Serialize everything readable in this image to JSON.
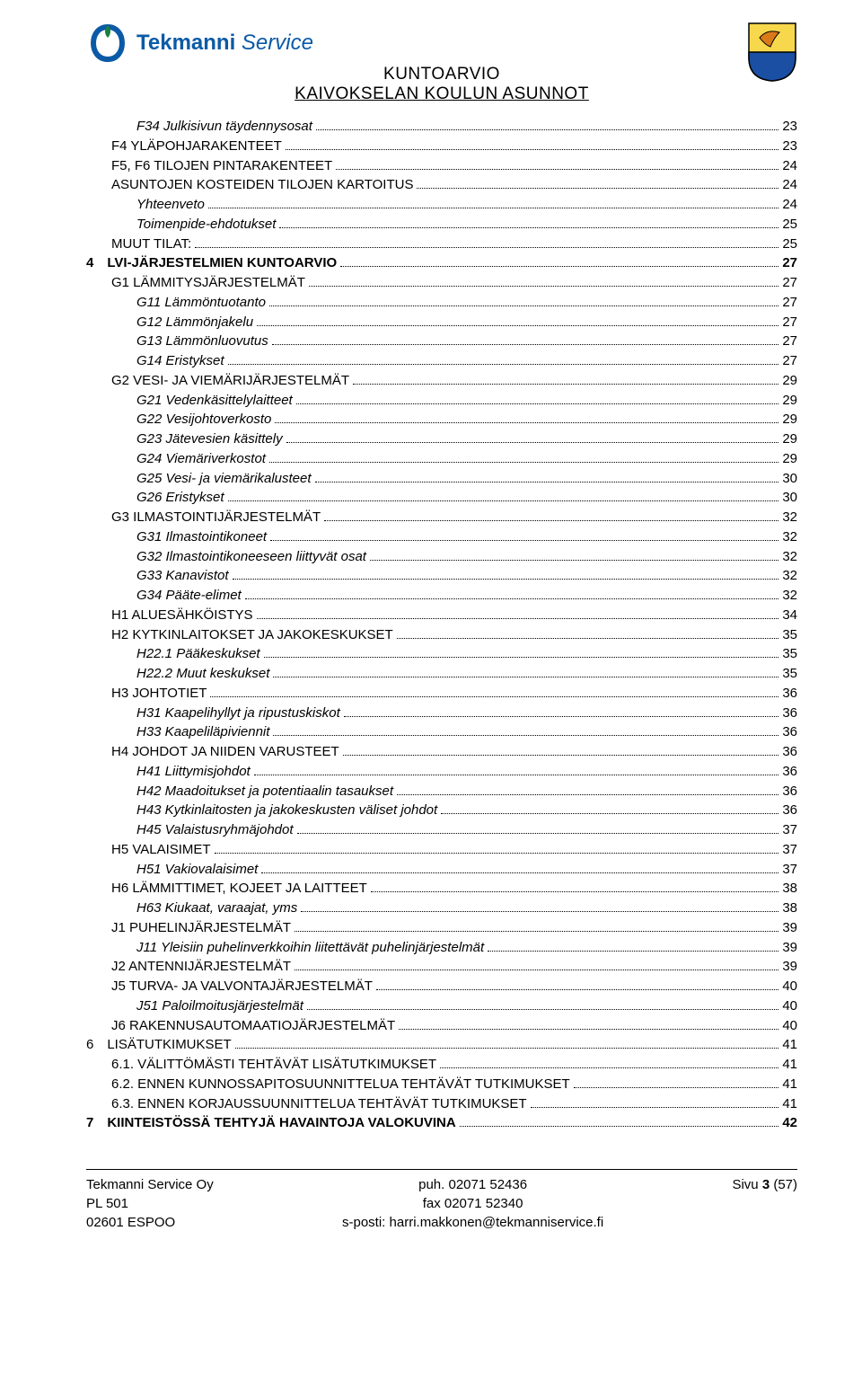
{
  "brand": {
    "name": "Tekmanni",
    "suffix": "Service",
    "color": "#0b5aa6",
    "icon_colors": {
      "leaf": "#1a7f3c",
      "arc": "#0b5aa6"
    }
  },
  "crest_colors": {
    "top": "#f7d84c",
    "bottom": "#1a4fa3",
    "wing": "#d97a1a",
    "outline": "#000000"
  },
  "doc_title_line1": "KUNTOARVIO",
  "doc_title_line2": "KAIVOKSELAN KOULUN ASUNNOT",
  "toc": [
    {
      "label": "F34 Julkisivun täydennysosat",
      "page": "23",
      "indent": 3,
      "style": "italic"
    },
    {
      "label": "F4 YLÄPOHJARAKENTEET",
      "page": "23",
      "indent": 2,
      "style": "smallcaps"
    },
    {
      "label": "F5, F6 TILOJEN PINTARAKENTEET",
      "page": "24",
      "indent": 2,
      "style": "smallcaps"
    },
    {
      "label": "ASUNTOJEN KOSTEIDEN TILOJEN KARTOITUS",
      "page": "24",
      "indent": 2,
      "style": "smallcaps"
    },
    {
      "label": "Yhteenveto",
      "page": "24",
      "indent": 3,
      "style": "italic"
    },
    {
      "label": "Toimenpide-ehdotukset",
      "page": "25",
      "indent": 3,
      "style": "italic"
    },
    {
      "label": "MUUT TILAT:",
      "page": "25",
      "indent": 2,
      "style": "smallcaps"
    },
    {
      "label": "4 LVI-JÄRJESTELMIEN KUNTOARVIO",
      "page": "27",
      "indent": 1,
      "style": "bold"
    },
    {
      "label": "G1 LÄMMITYSJÄRJESTELMÄT",
      "page": "27",
      "indent": 2,
      "style": "smallcaps"
    },
    {
      "label": "G11 Lämmöntuotanto",
      "page": "27",
      "indent": 3,
      "style": "italic"
    },
    {
      "label": "G12 Lämmönjakelu",
      "page": "27",
      "indent": 3,
      "style": "italic"
    },
    {
      "label": "G13 Lämmönluovutus",
      "page": "27",
      "indent": 3,
      "style": "italic"
    },
    {
      "label": "G14 Eristykset",
      "page": "27",
      "indent": 3,
      "style": "italic"
    },
    {
      "label": "G2 VESI- JA VIEMÄRIJÄRJESTELMÄT",
      "page": "29",
      "indent": 2,
      "style": "smallcaps"
    },
    {
      "label": "G21 Vedenkäsittelylaitteet",
      "page": "29",
      "indent": 3,
      "style": "italic"
    },
    {
      "label": "G22 Vesijohtoverkosto",
      "page": "29",
      "indent": 3,
      "style": "italic"
    },
    {
      "label": "G23 Jätevesien käsittely",
      "page": "29",
      "indent": 3,
      "style": "italic"
    },
    {
      "label": "G24 Viemäriverkostot",
      "page": "29",
      "indent": 3,
      "style": "italic"
    },
    {
      "label": "G25 Vesi- ja viemärikalusteet",
      "page": "30",
      "indent": 3,
      "style": "italic"
    },
    {
      "label": "G26 Eristykset",
      "page": "30",
      "indent": 3,
      "style": "italic"
    },
    {
      "label": "G3 ILMASTOINTIJÄRJESTELMÄT",
      "page": "32",
      "indent": 2,
      "style": "smallcaps"
    },
    {
      "label": "G31 Ilmastointikoneet",
      "page": "32",
      "indent": 3,
      "style": "italic"
    },
    {
      "label": "G32 Ilmastointikoneeseen liittyvät osat",
      "page": "32",
      "indent": 3,
      "style": "italic"
    },
    {
      "label": "G33 Kanavistot",
      "page": "32",
      "indent": 3,
      "style": "italic"
    },
    {
      "label": "G34 Pääte-elimet",
      "page": "32",
      "indent": 3,
      "style": "italic"
    },
    {
      "label": "H1 ALUESÄHKÖISTYS",
      "page": "34",
      "indent": 2,
      "style": "smallcaps"
    },
    {
      "label": "H2 KYTKINLAITOKSET JA JAKOKESKUKSET",
      "page": "35",
      "indent": 2,
      "style": "smallcaps"
    },
    {
      "label": "H22.1 Pääkeskukset",
      "page": "35",
      "indent": 3,
      "style": "italic"
    },
    {
      "label": "H22.2 Muut keskukset",
      "page": "35",
      "indent": 3,
      "style": "italic"
    },
    {
      "label": "H3 JOHTOTIET",
      "page": "36",
      "indent": 2,
      "style": "smallcaps"
    },
    {
      "label": "H31 Kaapelihyllyt ja ripustuskiskot",
      "page": "36",
      "indent": 3,
      "style": "italic"
    },
    {
      "label": "H33 Kaapeliläpiviennit",
      "page": "36",
      "indent": 3,
      "style": "italic"
    },
    {
      "label": "H4 JOHDOT JA NIIDEN VARUSTEET",
      "page": "36",
      "indent": 2,
      "style": "smallcaps"
    },
    {
      "label": "H41 Liittymisjohdot",
      "page": "36",
      "indent": 3,
      "style": "italic"
    },
    {
      "label": "H42 Maadoitukset ja potentiaalin tasaukset",
      "page": "36",
      "indent": 3,
      "style": "italic"
    },
    {
      "label": "H43 Kytkinlaitosten ja jakokeskusten väliset johdot",
      "page": "36",
      "indent": 3,
      "style": "italic"
    },
    {
      "label": "H45 Valaistusryhmäjohdot",
      "page": "37",
      "indent": 3,
      "style": "italic"
    },
    {
      "label": "H5 VALAISIMET",
      "page": "37",
      "indent": 2,
      "style": "smallcaps"
    },
    {
      "label": "H51 Vakiovalaisimet",
      "page": "37",
      "indent": 3,
      "style": "italic"
    },
    {
      "label": "H6 LÄMMITTIMET, KOJEET JA LAITTEET",
      "page": "38",
      "indent": 2,
      "style": "smallcaps"
    },
    {
      "label": "H63 Kiukaat, varaajat, yms",
      "page": "38",
      "indent": 3,
      "style": "italic"
    },
    {
      "label": "J1 PUHELINJÄRJESTELMÄT",
      "page": "39",
      "indent": 2,
      "style": "smallcaps"
    },
    {
      "label": "J11 Yleisiin puhelinverkkoihin liitettävät puhelinjärjestelmät",
      "page": "39",
      "indent": 3,
      "style": "italic"
    },
    {
      "label": "J2 ANTENNIJÄRJESTELMÄT",
      "page": "39",
      "indent": 2,
      "style": "smallcaps"
    },
    {
      "label": "J5 TURVA- JA VALVONTAJÄRJESTELMÄT",
      "page": "40",
      "indent": 2,
      "style": "smallcaps"
    },
    {
      "label": "J51 Paloilmoitusjärjestelmät",
      "page": "40",
      "indent": 3,
      "style": "italic"
    },
    {
      "label": "J6 RAKENNUSAUTOMAATIOJÄRJESTELMÄT",
      "page": "40",
      "indent": 2,
      "style": "smallcaps"
    },
    {
      "label": "6 LISÄTUTKIMUKSET",
      "page": "41",
      "indent": 1,
      "style": ""
    },
    {
      "label": "6.1. VÄLITTÖMÄSTI TEHTÄVÄT LISÄTUTKIMUKSET",
      "page": "41",
      "indent": 2,
      "style": "smallcaps"
    },
    {
      "label": "6.2. ENNEN KUNNOSSAPITOSUUNNITTELUA TEHTÄVÄT TUTKIMUKSET",
      "page": "41",
      "indent": 2,
      "style": "smallcaps"
    },
    {
      "label": "6.3. ENNEN KORJAUSSUUNNITTELUA TEHTÄVÄT TUTKIMUKSET",
      "page": "41",
      "indent": 2,
      "style": "smallcaps"
    },
    {
      "label": "7 KIINTEISTÖSSÄ TEHTYJÄ HAVAINTOJA VALOKUVINA",
      "page": "42",
      "indent": 1,
      "style": "bold"
    }
  ],
  "footer": {
    "left": [
      "Tekmanni Service Oy",
      "PL 501",
      "02601 ESPOO"
    ],
    "center": [
      "puh. 02071 52436",
      "fax 02071 52340",
      "s-posti: harri.makkonen@tekmanniservice.fi"
    ],
    "right_prefix": "Sivu ",
    "right_page": "3",
    "right_total": " (57)"
  }
}
